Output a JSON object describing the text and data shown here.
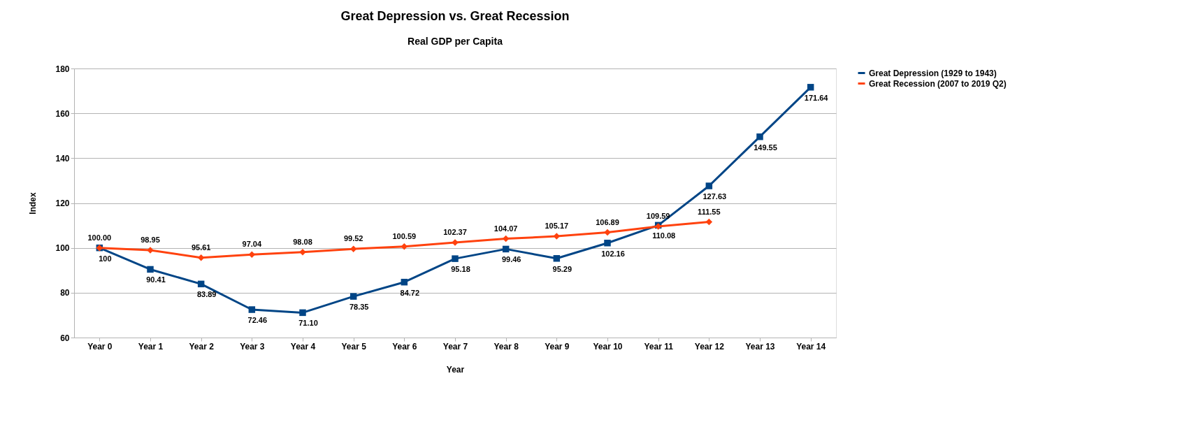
{
  "chart_data": {
    "type": "line",
    "title": "Great Depression vs. Great Recession",
    "subtitle": "Real GDP per Capita",
    "xlabel": "Year",
    "ylabel": "Index",
    "categories": [
      "Year 0",
      "Year 1",
      "Year 2",
      "Year 3",
      "Year 4",
      "Year 5",
      "Year 6",
      "Year 7",
      "Year 8",
      "Year 9",
      "Year 10",
      "Year 11",
      "Year 12",
      "Year 13",
      "Year 14"
    ],
    "series": [
      {
        "name": "Great Depression (1929 to 1943)",
        "color": "#004586",
        "marker": "square",
        "values": [
          100,
          90.41,
          83.89,
          72.46,
          71.1,
          78.35,
          84.72,
          95.18,
          99.46,
          95.29,
          102.16,
          110.08,
          127.63,
          149.55,
          171.64
        ],
        "value_labels": [
          "100",
          "90.41",
          "83.89",
          "72.46",
          "71.10",
          "78.35",
          "84.72",
          "95.18",
          "99.46",
          "95.29",
          "102.16",
          "110.08",
          "127.63",
          "149.55",
          "171.64"
        ]
      },
      {
        "name": "Great Recession (2007 to 2019 Q2)",
        "color": "#ff420e",
        "marker": "diamond",
        "values": [
          100.0,
          98.95,
          95.61,
          97.04,
          98.08,
          99.52,
          100.59,
          102.37,
          104.07,
          105.17,
          106.89,
          109.59,
          111.55,
          null,
          null
        ],
        "value_labels": [
          "100.00",
          "98.95",
          "95.61",
          "97.04",
          "98.08",
          "99.52",
          "100.59",
          "102.37",
          "104.07",
          "105.17",
          "106.89",
          "109.59",
          "111.55",
          null,
          null
        ]
      }
    ],
    "ylim": [
      60,
      180
    ],
    "yticks": [
      60,
      80,
      100,
      120,
      140,
      160,
      180
    ],
    "grid": "y",
    "legend": "right",
    "line_style": "solid"
  }
}
